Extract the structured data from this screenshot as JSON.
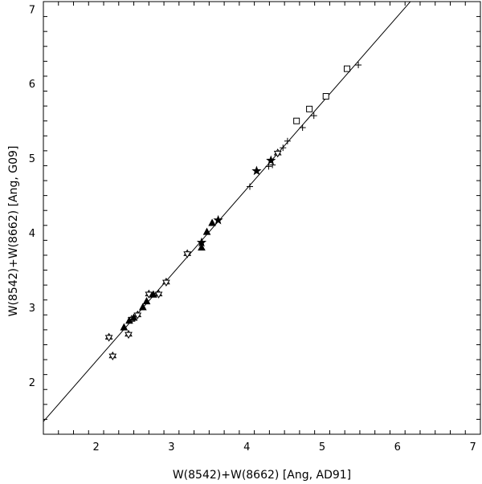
{
  "chart_data": {
    "type": "scatter",
    "xlabel": "W(8542)+W(8662) [Ang, AD91]",
    "ylabel": "W(8542)+W(8662) [Ang, G09]",
    "xlim": [
      1.3,
      7.1
    ],
    "ylim": [
      1.3,
      7.1
    ],
    "x_ticks": [
      "2",
      "3",
      "4",
      "5",
      "6",
      "7"
    ],
    "y_ticks": [
      "2",
      "3",
      "4",
      "5",
      "6",
      "7"
    ],
    "grid": false,
    "fit_line": {
      "slope": 1.156,
      "intercept": -0.033
    },
    "series": [
      {
        "marker": "open-star",
        "points": [
          [
            2.17,
            2.6
          ],
          [
            2.22,
            2.35
          ],
          [
            2.43,
            2.64
          ],
          [
            2.47,
            2.84
          ],
          [
            2.55,
            2.9
          ],
          [
            2.7,
            3.18
          ],
          [
            2.83,
            3.18
          ],
          [
            2.93,
            3.34
          ],
          [
            3.21,
            3.72
          ],
          [
            4.41,
            5.07
          ]
        ]
      },
      {
        "marker": "filled-triangle",
        "points": [
          [
            2.37,
            2.73
          ],
          [
            2.44,
            2.82
          ],
          [
            2.5,
            2.86
          ],
          [
            2.62,
            3.0
          ],
          [
            2.67,
            3.08
          ],
          [
            2.76,
            3.17
          ],
          [
            3.4,
            3.8
          ],
          [
            3.47,
            4.01
          ],
          [
            3.54,
            4.13
          ]
        ]
      },
      {
        "marker": "filled-star",
        "points": [
          [
            3.4,
            3.87
          ],
          [
            3.62,
            4.17
          ],
          [
            4.13,
            4.83
          ],
          [
            4.32,
            4.97
          ]
        ]
      },
      {
        "marker": "plus",
        "points": [
          [
            4.04,
            4.62
          ],
          [
            4.29,
            4.89
          ],
          [
            4.34,
            4.91
          ],
          [
            4.48,
            5.14
          ],
          [
            4.54,
            5.23
          ],
          [
            4.74,
            5.41
          ],
          [
            4.89,
            5.57
          ],
          [
            5.48,
            6.25
          ]
        ]
      },
      {
        "marker": "open-square",
        "points": [
          [
            4.66,
            5.5
          ],
          [
            4.83,
            5.66
          ],
          [
            5.05,
            5.83
          ],
          [
            5.33,
            6.2
          ]
        ]
      }
    ]
  }
}
